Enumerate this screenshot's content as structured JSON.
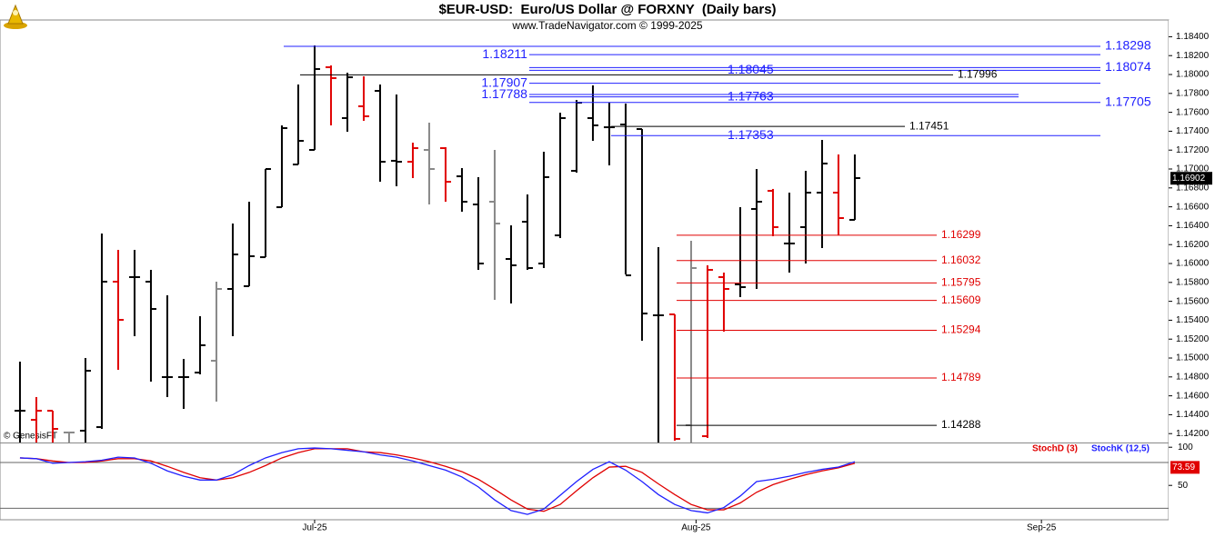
{
  "chart_data": [
    {
      "type": "ohlc",
      "title": "$EUR-USD:  Euro/US Dollar @ FORXNY  (Daily bars)",
      "subtitle": "www.TradeNavigator.com © 1999-2025",
      "copyright": "© GenesisFT",
      "categories": [
        null,
        null,
        null,
        null,
        null,
        null,
        null,
        null,
        null,
        null,
        null,
        null,
        null,
        null,
        null,
        null,
        null,
        null,
        null,
        null,
        null,
        null,
        null,
        null,
        null,
        null,
        null,
        null,
        null,
        null,
        null,
        null,
        null,
        null,
        null,
        null,
        null,
        null,
        null,
        null,
        null,
        null,
        null,
        null,
        null,
        null,
        null,
        null,
        null,
        null,
        null,
        null
      ],
      "open": [
        1.14442,
        1.14346,
        1.14442,
        1.14212,
        1.14231,
        1.14269,
        1.15808,
        1.15856,
        1.15808,
        1.14798,
        1.14798,
        1.14846,
        1.14971,
        1.15731,
        1.1576,
        1.16067,
        1.16596,
        1.17048,
        1.17202,
        1.18077,
        1.17539,
        1.17664,
        1.17827,
        1.17087,
        1.17077,
        1.17202,
        1.17221,
        1.16923,
        1.16625,
        1.16654,
        1.16048,
        1.16442,
        1.16,
        1.16298,
        1.16981,
        1.17539,
        1.17442,
        1.17471,
        1.17423,
        1.15452,
        1.15462,
        1.14289,
        1.14173,
        1.15856,
        1.15779,
        1.16577,
        1.16769,
        1.16212,
        1.16385,
        1.1675,
        1.1675,
        1.16462
      ],
      "high": [
        1.14962,
        1.14587,
        1.14442,
        1.14212,
        1.15,
        1.16317,
        1.16144,
        1.16144,
        1.15933,
        1.15664,
        1.1499,
        1.15442,
        1.15808,
        1.16423,
        1.16654,
        1.17,
        1.17462,
        1.17894,
        1.18308,
        1.18096,
        1.18019,
        1.17981,
        1.17894,
        1.17789,
        1.17279,
        1.1749,
        1.17231,
        1.1701,
        1.16914,
        1.17202,
        1.16404,
        1.16731,
        1.17183,
        1.17596,
        1.17731,
        1.17885,
        1.17702,
        1.17692,
        1.17423,
        1.16173,
        1.15462,
        1.1624,
        1.15981,
        1.15904,
        1.16596,
        1.17,
        1.16789,
        1.1675,
        1.16981,
        1.17308,
        1.17154,
        1.17154
      ],
      "low": [
        1.14077,
        1.14077,
        1.14077,
        1.14077,
        1.14077,
        1.1425,
        1.14875,
        1.15231,
        1.1475,
        1.14587,
        1.14462,
        1.14827,
        1.14539,
        1.15231,
        1.1576,
        1.16067,
        1.16596,
        1.17048,
        1.17202,
        1.17462,
        1.17394,
        1.1751,
        1.16865,
        1.16817,
        1.16904,
        1.16625,
        1.16654,
        1.16548,
        1.15933,
        1.15615,
        1.15577,
        1.15933,
        1.15952,
        1.16269,
        1.16962,
        1.17298,
        1.17039,
        1.15885,
        1.15183,
        1.14077,
        1.14125,
        1.14106,
        1.14154,
        1.15279,
        1.15644,
        1.15731,
        1.16289,
        1.15904,
        1.16,
        1.16164,
        1.16298,
        1.16462
      ],
      "close": [
        1.14442,
        1.14442,
        1.1425,
        1.14212,
        1.14865,
        1.15808,
        1.15404,
        1.15856,
        1.15519,
        1.14798,
        1.14798,
        1.15135,
        1.15731,
        1.16096,
        1.16077,
        1.17,
        1.17433,
        1.17298,
        1.18058,
        1.17962,
        1.17971,
        1.17558,
        1.17077,
        1.17077,
        1.17221,
        1.17,
        1.16865,
        1.16654,
        1.16,
        1.16423,
        1.15981,
        1.15952,
        1.16914,
        1.17539,
        1.17702,
        1.17462,
        1.17442,
        1.15875,
        1.15471,
        1.15452,
        1.14144,
        1.15952,
        1.15933,
        1.15731,
        1.1575,
        1.16654,
        1.16385,
        1.16212,
        1.1675,
        1.17058,
        1.16481,
        1.16904
      ],
      "colors": [
        "#000000",
        "#e00000",
        "#e00000",
        "#888888",
        "#000000",
        "#000000",
        "#e00000",
        "#000000",
        "#000000",
        "#000000",
        "#000000",
        "#000000",
        "#888888",
        "#000000",
        "#000000",
        "#000000",
        "#000000",
        "#000000",
        "#000000",
        "#e00000",
        "#000000",
        "#e00000",
        "#000000",
        "#000000",
        "#e00000",
        "#888888",
        "#e00000",
        "#000000",
        "#000000",
        "#888888",
        "#000000",
        "#000000",
        "#000000",
        "#000000",
        "#000000",
        "#000000",
        "#000000",
        "#000000",
        "#000000",
        "#000000",
        "#e00000",
        "#888888",
        "#e00000",
        "#e00000",
        "#000000",
        "#000000",
        "#e00000",
        "#000000",
        "#000000",
        "#000000",
        "#e00000",
        "#000000"
      ],
      "levels": [
        {
          "value": 1.18298,
          "color": "#2020ff",
          "from": 17
        },
        {
          "value": 1.18211,
          "color": "#2020ff",
          "from": 32
        },
        {
          "value": 1.18074,
          "color": "#2020ff",
          "from": 32
        },
        {
          "value": 1.18045,
          "color": "#2020ff",
          "from": 32
        },
        {
          "value": 1.17996,
          "color": "#000000",
          "from": 18
        },
        {
          "value": 1.17907,
          "color": "#2020ff",
          "from": 32
        },
        {
          "value": 1.17788,
          "color": "#2020ff",
          "from": 32
        },
        {
          "value": 1.17763,
          "color": "#2020ff",
          "from": 32
        },
        {
          "value": 1.17705,
          "color": "#2020ff",
          "from": 32
        },
        {
          "value": 1.17451,
          "color": "#000000",
          "from": 37
        },
        {
          "value": 1.17353,
          "color": "#2020ff",
          "from": 37
        },
        {
          "value": 1.16299,
          "color": "#e00000",
          "from": 41
        },
        {
          "value": 1.16032,
          "color": "#e00000",
          "from": 41
        },
        {
          "value": 1.15795,
          "color": "#e00000",
          "from": 41
        },
        {
          "value": 1.15609,
          "color": "#e00000",
          "from": 41
        },
        {
          "value": 1.15294,
          "color": "#e00000",
          "from": 41
        },
        {
          "value": 1.14789,
          "color": "#e00000",
          "from": 41
        },
        {
          "value": 1.14288,
          "color": "#000000",
          "from": 41
        }
      ],
      "last_price": 1.16902,
      "xlim": [
        -1.22,
        70.17
      ],
      "ylim": [
        1.14106,
        1.18577
      ],
      "yticks": [
        {
          "value": 1.142,
          "label": "1.14200"
        },
        {
          "value": 1.144,
          "label": "1.14400"
        },
        {
          "value": 1.146,
          "label": "1.14600"
        },
        {
          "value": 1.148,
          "label": "1.14800"
        },
        {
          "value": 1.15,
          "label": "1.15000"
        },
        {
          "value": 1.152,
          "label": "1.15200"
        },
        {
          "value": 1.154,
          "label": "1.15400"
        },
        {
          "value": 1.156,
          "label": "1.15600"
        },
        {
          "value": 1.158,
          "label": "1.15800"
        },
        {
          "value": 1.16,
          "label": "1.16000"
        },
        {
          "value": 1.162,
          "label": "1.16200"
        },
        {
          "value": 1.164,
          "label": "1.16400"
        },
        {
          "value": 1.166,
          "label": "1.16600"
        },
        {
          "value": 1.168,
          "label": "1.16800"
        },
        {
          "value": 1.17,
          "label": "1.17000"
        },
        {
          "value": 1.172,
          "label": "1.17200"
        },
        {
          "value": 1.174,
          "label": "1.17400"
        },
        {
          "value": 1.176,
          "label": "1.17600"
        },
        {
          "value": 1.178,
          "label": "1.17800"
        },
        {
          "value": 1.18,
          "label": "1.18000"
        },
        {
          "value": 1.182,
          "label": "1.18200"
        },
        {
          "value": 1.184,
          "label": "1.18400"
        }
      ]
    },
    {
      "type": "line",
      "series": [
        {
          "name": "StochD (3)",
          "color": "#e00000",
          "values": [
            86,
            85,
            82,
            80,
            80,
            82,
            85,
            85,
            82,
            75,
            67,
            60,
            57,
            60,
            67,
            76,
            86,
            93,
            98,
            98,
            98,
            94,
            93,
            90,
            86,
            81,
            75,
            68,
            58,
            45,
            31,
            19,
            16,
            25,
            43,
            60,
            74,
            75,
            67,
            52,
            38,
            25,
            18,
            18,
            27,
            41,
            51,
            58,
            64,
            69,
            73,
            79
          ]
        },
        {
          "name": "StochK (12,5)",
          "color": "#2020ff",
          "values": [
            86,
            85,
            79,
            80,
            81,
            83,
            87,
            86,
            79,
            69,
            62,
            57,
            57,
            64,
            76,
            86,
            93,
            98,
            99,
            98,
            96,
            94,
            90,
            87,
            82,
            76,
            70,
            61,
            48,
            31,
            17,
            12,
            19,
            37,
            55,
            71,
            81,
            70,
            55,
            38,
            25,
            17,
            14,
            21,
            36,
            55,
            58,
            62,
            67,
            71,
            74,
            81
          ]
        }
      ],
      "last_value": 73.59,
      "bands": [
        80,
        20
      ],
      "xlim": [
        -1.22,
        70.17
      ],
      "xticks": [
        {
          "value": 18,
          "label": "Jul-25"
        },
        {
          "value": 41.3,
          "label": "Aug-25"
        },
        {
          "value": 62.4,
          "label": "Sep-25"
        }
      ],
      "ylim": [
        5,
        105
      ],
      "yticks": [
        100,
        50
      ]
    }
  ]
}
